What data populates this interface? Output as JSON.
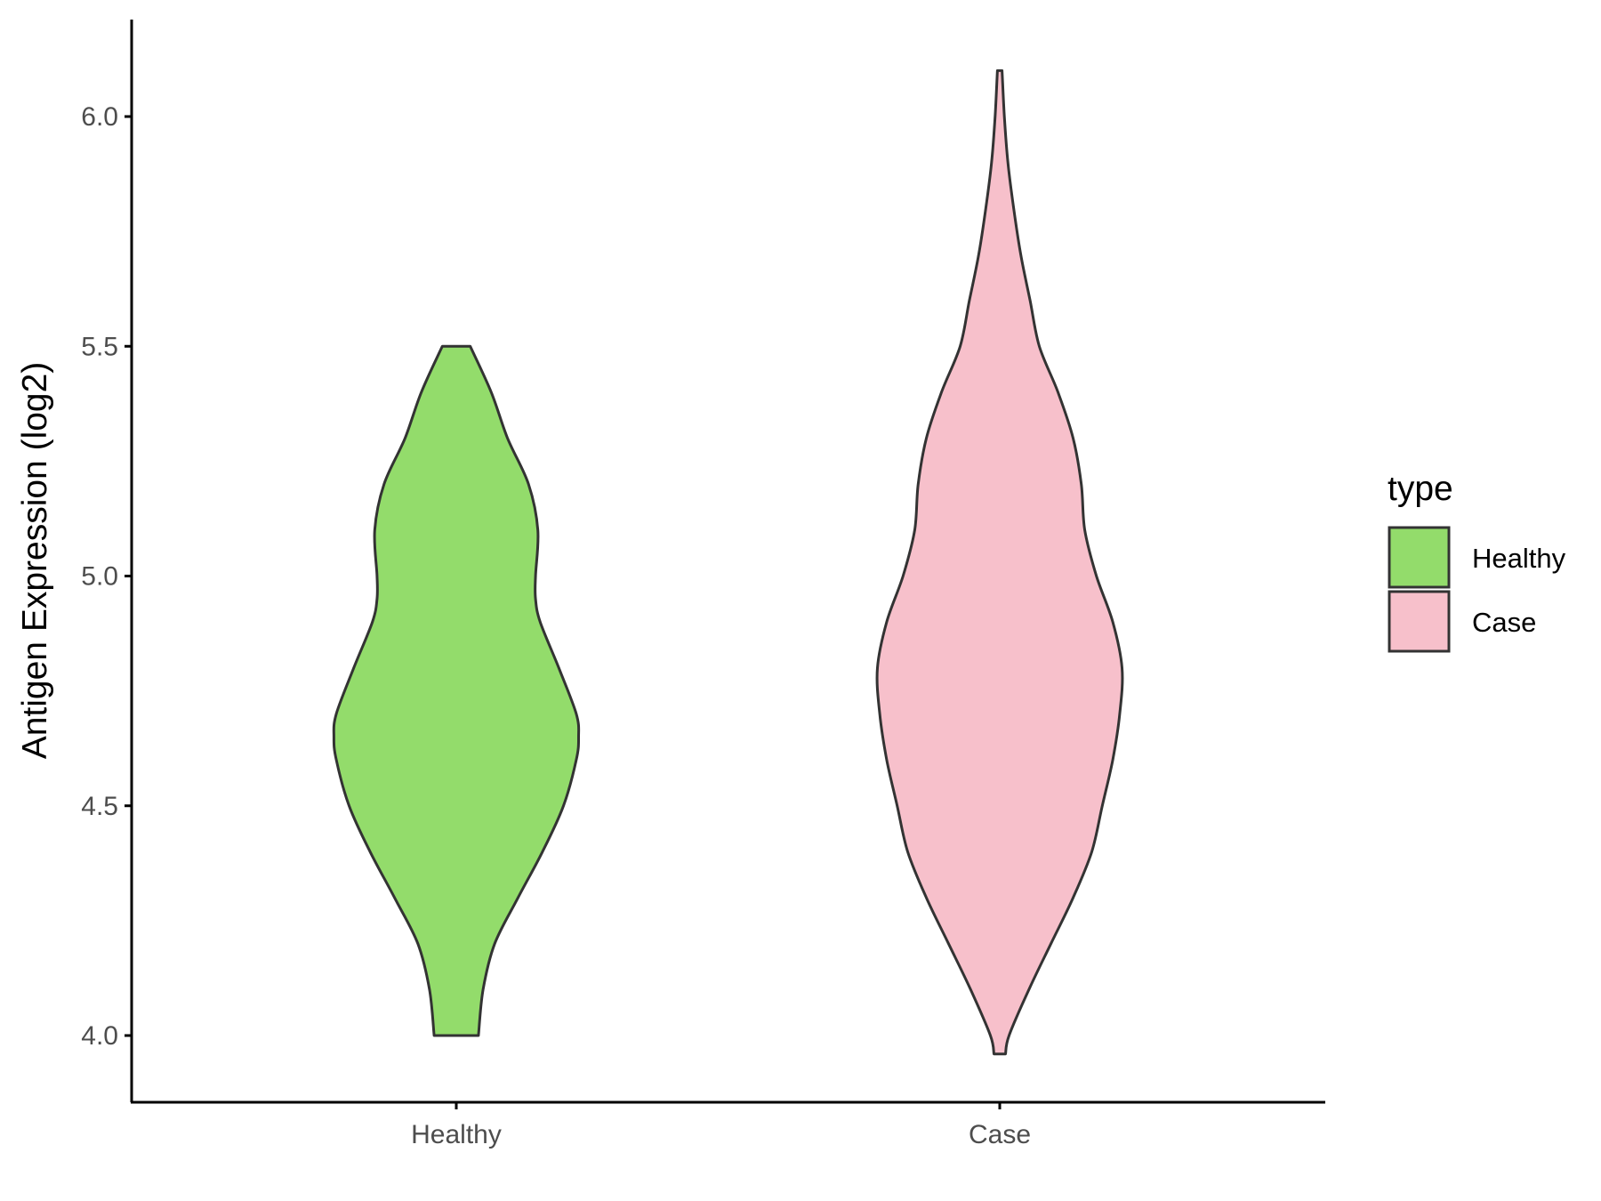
{
  "chart_data": {
    "type": "violin",
    "title": "",
    "xlabel": "",
    "ylabel": "Antigen Expression (log2)",
    "ylim": [
      3.86,
      6.2
    ],
    "yticks": [
      "4.0",
      "4.5",
      "5.0",
      "5.5",
      "6.0"
    ],
    "ytick_values": [
      4.0,
      4.5,
      5.0,
      5.5,
      6.0
    ],
    "categories": [
      "Healthy",
      "Case"
    ],
    "grid": false,
    "legend": {
      "title": "type",
      "placement": "right",
      "entries": [
        "Healthy",
        "Case"
      ]
    },
    "colors": {
      "Healthy": "#93dc6b",
      "Case": "#f7c0cb",
      "outline": "#333333",
      "axis": "#000000"
    },
    "series": [
      {
        "name": "Healthy",
        "density_profile": [
          {
            "y": 4.0,
            "halfwidth": 0.19
          },
          {
            "y": 4.1,
            "halfwidth": 0.23
          },
          {
            "y": 4.2,
            "halfwidth": 0.33
          },
          {
            "y": 4.3,
            "halfwidth": 0.53
          },
          {
            "y": 4.4,
            "halfwidth": 0.74
          },
          {
            "y": 4.5,
            "halfwidth": 0.92
          },
          {
            "y": 4.6,
            "halfwidth": 1.03
          },
          {
            "y": 4.65,
            "halfwidth": 1.05
          },
          {
            "y": 4.7,
            "halfwidth": 1.03
          },
          {
            "y": 4.8,
            "halfwidth": 0.88
          },
          {
            "y": 4.9,
            "halfwidth": 0.72
          },
          {
            "y": 4.95,
            "halfwidth": 0.68
          },
          {
            "y": 5.0,
            "halfwidth": 0.68
          },
          {
            "y": 5.1,
            "halfwidth": 0.7
          },
          {
            "y": 5.2,
            "halfwidth": 0.62
          },
          {
            "y": 5.3,
            "halfwidth": 0.44
          },
          {
            "y": 5.4,
            "halfwidth": 0.3
          },
          {
            "y": 5.5,
            "halfwidth": 0.12
          }
        ]
      },
      {
        "name": "Case",
        "density_profile": [
          {
            "y": 3.96,
            "halfwidth": 0.05
          },
          {
            "y": 4.0,
            "halfwidth": 0.08
          },
          {
            "y": 4.1,
            "halfwidth": 0.25
          },
          {
            "y": 4.2,
            "halfwidth": 0.44
          },
          {
            "y": 4.3,
            "halfwidth": 0.63
          },
          {
            "y": 4.4,
            "halfwidth": 0.79
          },
          {
            "y": 4.5,
            "halfwidth": 0.88
          },
          {
            "y": 4.6,
            "halfwidth": 0.97
          },
          {
            "y": 4.7,
            "halfwidth": 1.03
          },
          {
            "y": 4.8,
            "halfwidth": 1.05
          },
          {
            "y": 4.9,
            "halfwidth": 0.97
          },
          {
            "y": 5.0,
            "halfwidth": 0.83
          },
          {
            "y": 5.1,
            "halfwidth": 0.73
          },
          {
            "y": 5.2,
            "halfwidth": 0.7
          },
          {
            "y": 5.3,
            "halfwidth": 0.63
          },
          {
            "y": 5.4,
            "halfwidth": 0.5
          },
          {
            "y": 5.5,
            "halfwidth": 0.34
          },
          {
            "y": 5.6,
            "halfwidth": 0.26
          },
          {
            "y": 5.7,
            "halfwidth": 0.18
          },
          {
            "y": 5.8,
            "halfwidth": 0.12
          },
          {
            "y": 5.9,
            "halfwidth": 0.07
          },
          {
            "y": 6.0,
            "halfwidth": 0.04
          },
          {
            "y": 6.1,
            "halfwidth": 0.02
          }
        ]
      }
    ]
  }
}
